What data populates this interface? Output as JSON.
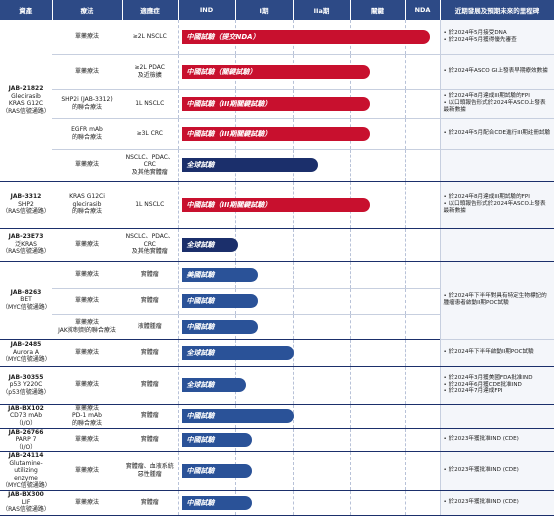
{
  "header": [
    "資產",
    "療法",
    "適應症",
    "IND",
    "I期",
    "IIa期",
    "關鍵",
    "NDA",
    "近期發展及預期未來的里程碑"
  ],
  "groups": [
    {
      "asset": [
        "JAB-21822",
        "Glecirasib",
        "KRAS G12C",
        "（RAS信號通路）"
      ],
      "rows": [
        {
          "therapy": [
            "單藥療法"
          ],
          "indication": [
            "≥2L NSCLC"
          ],
          "program": "中國試驗（提交NDA）",
          "color": "#c8102e",
          "milestones": [
            "• 於2024年5月接受DNA",
            "• 於2024年5月獲得優先審查"
          ]
        },
        {
          "therapy": [
            "單藥療法"
          ],
          "indication": [
            "≥2L PDAC",
            "及近檢擴"
          ],
          "program": "中國試驗（關鍵試驗）",
          "color": "#c8102e",
          "milestones": [
            "• 於2024年ASCO GI上發表早期療效數據"
          ]
        },
        {
          "therapy": [
            "SHP2i (JAB-3312)",
            "的聯合療法"
          ],
          "indication": [
            "1L NSCLC"
          ],
          "program": "中國試驗（III期關鍵試驗）",
          "color": "#c8102e",
          "milestones": [
            "• 於2024年8月達成III期試驗的FPI",
            "• 以口頭報告形式於2024年ASCO上發表最新數據"
          ]
        },
        {
          "therapy": [
            "EGFR mAb",
            "的聯合療法"
          ],
          "indication": [
            "≥3L CRC"
          ],
          "program": "中國試驗（III期關鍵試驗）",
          "color": "#c8102e",
          "milestones": [
            "• 於2024年5月配合CDE進行III期註冊試驗"
          ]
        },
        {
          "therapy": [
            "單藥療法"
          ],
          "indication": [
            "NSCLC、PDAC、CRC",
            "及其他實體瘤"
          ],
          "program": "全球試驗",
          "color": "#1b2f6b",
          "milestones": []
        }
      ]
    },
    {
      "asset": [
        "JAB-3312",
        "SHP2",
        "（RAS信號通路）"
      ],
      "rows": [
        {
          "therapy": [
            "KRAS G12Ci",
            "glecirasib",
            "的聯合療法"
          ],
          "indication": [
            "1L NSCLC"
          ],
          "program": "中國試驗（III期關鍵試驗）",
          "color": "#c8102e",
          "milestones": [
            "• 於2024年8月達成III期試驗的FPI",
            "• 以口頭報告形式於2024年ASCO上發表最新數據"
          ]
        }
      ]
    },
    {
      "asset": [
        "JAB-23E73",
        "泛KRAS",
        "（RAS信號通路）"
      ],
      "rows": [
        {
          "therapy": [
            "單藥療法"
          ],
          "indication": [
            "NSCLC、PDAC、CRC",
            "及其他實體瘤"
          ],
          "program": "全球試驗",
          "color": "#1b2f6b",
          "milestones": []
        }
      ]
    },
    {
      "asset": [
        "JAB-8263",
        "BET",
        "（MYC信號通路）"
      ],
      "milestones": [
        "• 於2024年下半年對具有特定生物標記的腫瘤患者啟動II期POC試驗"
      ],
      "rows": [
        {
          "therapy": [
            "單藥療法"
          ],
          "indication": [
            "實體瘤"
          ],
          "program": "美國試驗",
          "color": "#2a5298"
        },
        {
          "therapy": [
            "單藥療法"
          ],
          "indication": [
            "實體瘤"
          ],
          "program": "中國試驗",
          "color": "#2a5298"
        },
        {
          "therapy": [
            "單藥療法",
            "JAK抑制劑的聯合療法"
          ],
          "indication": [
            "液體腫瘤"
          ],
          "program": "中國試驗",
          "color": "#2a5298"
        }
      ]
    },
    {
      "asset": [
        "JAB-2485",
        "Aurora A",
        "（MYC信號通路）"
      ],
      "rows": [
        {
          "therapy": [
            "單藥療法"
          ],
          "indication": [
            "實體瘤"
          ],
          "program": "全球試驗",
          "color": "#2a5298",
          "milestones": [
            "• 於2024年下半年啟動II期POC試驗"
          ]
        }
      ]
    },
    {
      "asset": [
        "JAB-30355",
        "p53 Y220C",
        "（p53信號通路）"
      ],
      "rows": [
        {
          "therapy": [
            "單藥療法"
          ],
          "indication": [
            "實體瘤"
          ],
          "program": "全球試驗",
          "color": "#2a5298",
          "milestones": [
            "• 於2024年3月獲美國FDA批准IND",
            "• 於2024年6月獲CDE批准IND",
            "• 於2024年7月達成FPI"
          ]
        }
      ]
    },
    {
      "asset": [
        "JAB-BX102",
        "CD73 mAb",
        "（I/O）"
      ],
      "rows": [
        {
          "therapy": [
            "單藥療法",
            "PD-1 mAb",
            "的聯合療法"
          ],
          "indication": [
            "實體瘤"
          ],
          "program": "中國試驗",
          "color": "#2a5298",
          "milestones": []
        }
      ]
    },
    {
      "asset": [
        "JAB-26766",
        "PARP 7",
        "（I/O）"
      ],
      "rows": [
        {
          "therapy": [
            "單藥療法"
          ],
          "indication": [
            "實體瘤"
          ],
          "program": "中國試驗",
          "color": "#2a5298",
          "milestones": [
            "• 於2023年獲批准IND (CDE)"
          ]
        }
      ]
    },
    {
      "asset": [
        "JAB-24114",
        "Glutamine-",
        "utilizing enzyme",
        "（MYC信號通路）"
      ],
      "rows": [
        {
          "therapy": [
            "單藥療法"
          ],
          "indication": [
            "實體瘤、血液系統",
            "惡性腫瘤"
          ],
          "program": "中國試驗",
          "color": "#2a5298",
          "milestones": [
            "• 於2023年獲批准IND (CDE)"
          ]
        }
      ]
    },
    {
      "asset": [
        "JAB-BX300",
        "LIF",
        "（RAS信號通路）"
      ],
      "rows": [
        {
          "therapy": [
            "單藥療法"
          ],
          "indication": [
            "實體瘤"
          ],
          "program": "中國試驗",
          "color": "#2a5298",
          "milestones": [
            "• 於2023年獲批准IND (CDE)"
          ]
        }
      ]
    }
  ]
}
